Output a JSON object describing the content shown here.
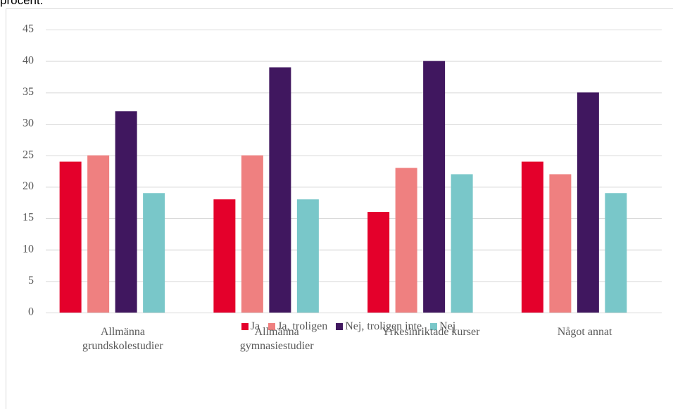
{
  "caption": "procent.",
  "chart_data": {
    "type": "bar",
    "categories": [
      "Allmänna\ngrundskolestudier",
      "Allmänna\ngymnasiestudier",
      "Yrkesinriktade kurser",
      "Något annat"
    ],
    "series": [
      {
        "name": "Ja",
        "color": "#e4002b",
        "values": [
          24,
          18,
          16,
          24
        ]
      },
      {
        "name": "Ja, troligen",
        "color": "#ef8080",
        "values": [
          25,
          25,
          23,
          22
        ]
      },
      {
        "name": "Nej, troligen inte",
        "color": "#40175f",
        "values": [
          32,
          39,
          40,
          35
        ]
      },
      {
        "name": "Nej",
        "color": "#79c7c9",
        "values": [
          19,
          18,
          22,
          19
        ]
      }
    ],
    "ylim": [
      0,
      45
    ],
    "yticks": [
      0,
      5,
      10,
      15,
      20,
      25,
      30,
      35,
      40,
      45
    ],
    "grid": true,
    "legend": "bottom"
  }
}
